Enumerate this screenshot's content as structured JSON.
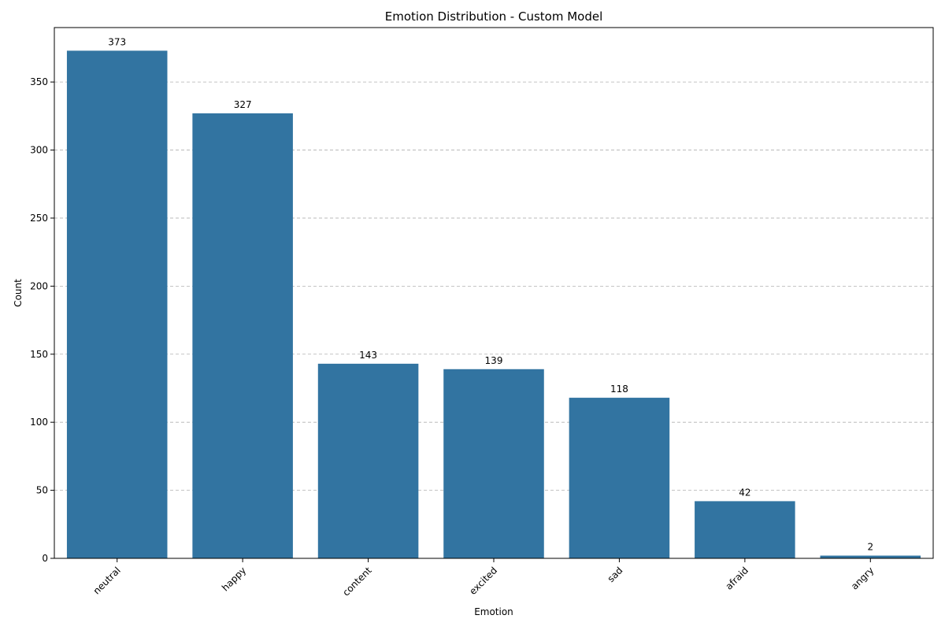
{
  "chart_data": {
    "type": "bar",
    "title": "Emotion Distribution - Custom Model",
    "xlabel": "Emotion",
    "ylabel": "Count",
    "categories": [
      "neutral",
      "happy",
      "content",
      "excited",
      "sad",
      "afraid",
      "angry"
    ],
    "values": [
      373,
      327,
      143,
      139,
      118,
      42,
      2
    ],
    "ylim": [
      0,
      390
    ],
    "yticks": [
      0,
      50,
      100,
      150,
      200,
      250,
      300,
      350
    ],
    "grid": "y-dashed",
    "bar_color": "#3274a1",
    "data_labels": true,
    "x_tick_rotation": 45
  }
}
